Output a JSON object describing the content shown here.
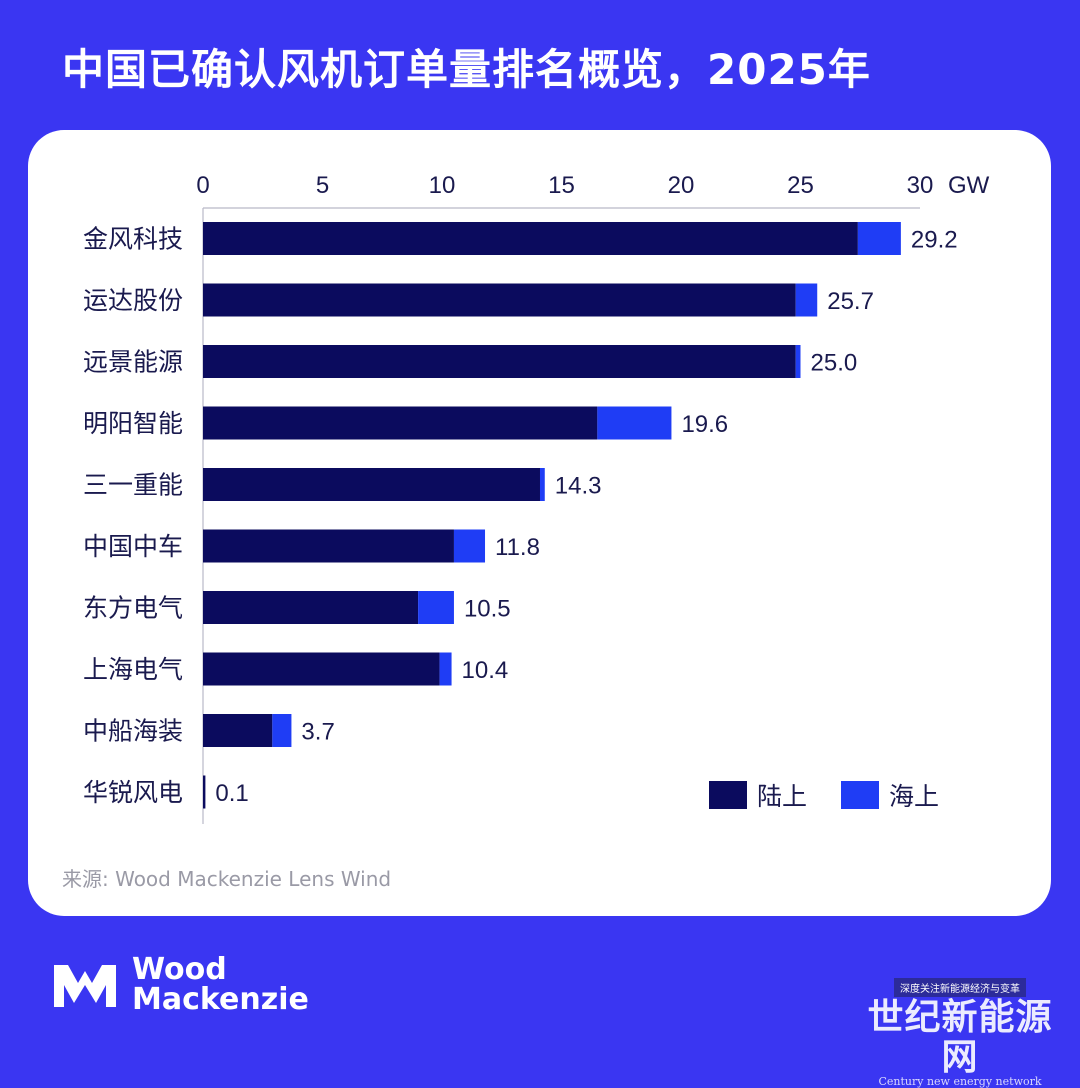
{
  "title": "中国已确认风机订单量排名概览，2025年",
  "source": "来源: Wood Mackenzie Lens Wind",
  "brand": {
    "line1": "Wood",
    "line2": "Mackenzie"
  },
  "watermark": {
    "tag": "深度关注新能源经济与变革",
    "main": "世纪新能源网",
    "sub": "Century new energy network"
  },
  "colors": {
    "background": "#3a36f2",
    "onshore": "#0b0b5e",
    "offshore": "#1f3df5"
  },
  "chart_data": {
    "type": "bar",
    "orientation": "horizontal",
    "stacked": true,
    "unit": "GW",
    "xlim": [
      0,
      30
    ],
    "xticks": [
      0,
      5,
      10,
      15,
      20,
      25,
      30
    ],
    "categories": [
      "金风科技",
      "运达股份",
      "远景能源",
      "明阳智能",
      "三一重能",
      "中国中车",
      "东方电气",
      "上海电气",
      "中船海装",
      "华锐风电"
    ],
    "series": [
      {
        "name": "陆上",
        "color": "#0b0b5e",
        "values": [
          27.4,
          24.8,
          24.8,
          16.5,
          14.1,
          10.5,
          9.0,
          9.9,
          2.9,
          0.1
        ]
      },
      {
        "name": "海上",
        "color": "#1f3df5",
        "values": [
          1.8,
          0.9,
          0.2,
          3.1,
          0.2,
          1.3,
          1.5,
          0.5,
          0.8,
          0.0
        ]
      }
    ],
    "totals": [
      "29.2",
      "25.7",
      "25.0",
      "19.6",
      "14.3",
      "11.8",
      "10.5",
      "10.4",
      "3.7",
      "0.1"
    ],
    "legend": {
      "position": "bottom-right",
      "entries": [
        "陆上",
        "海上"
      ]
    }
  }
}
